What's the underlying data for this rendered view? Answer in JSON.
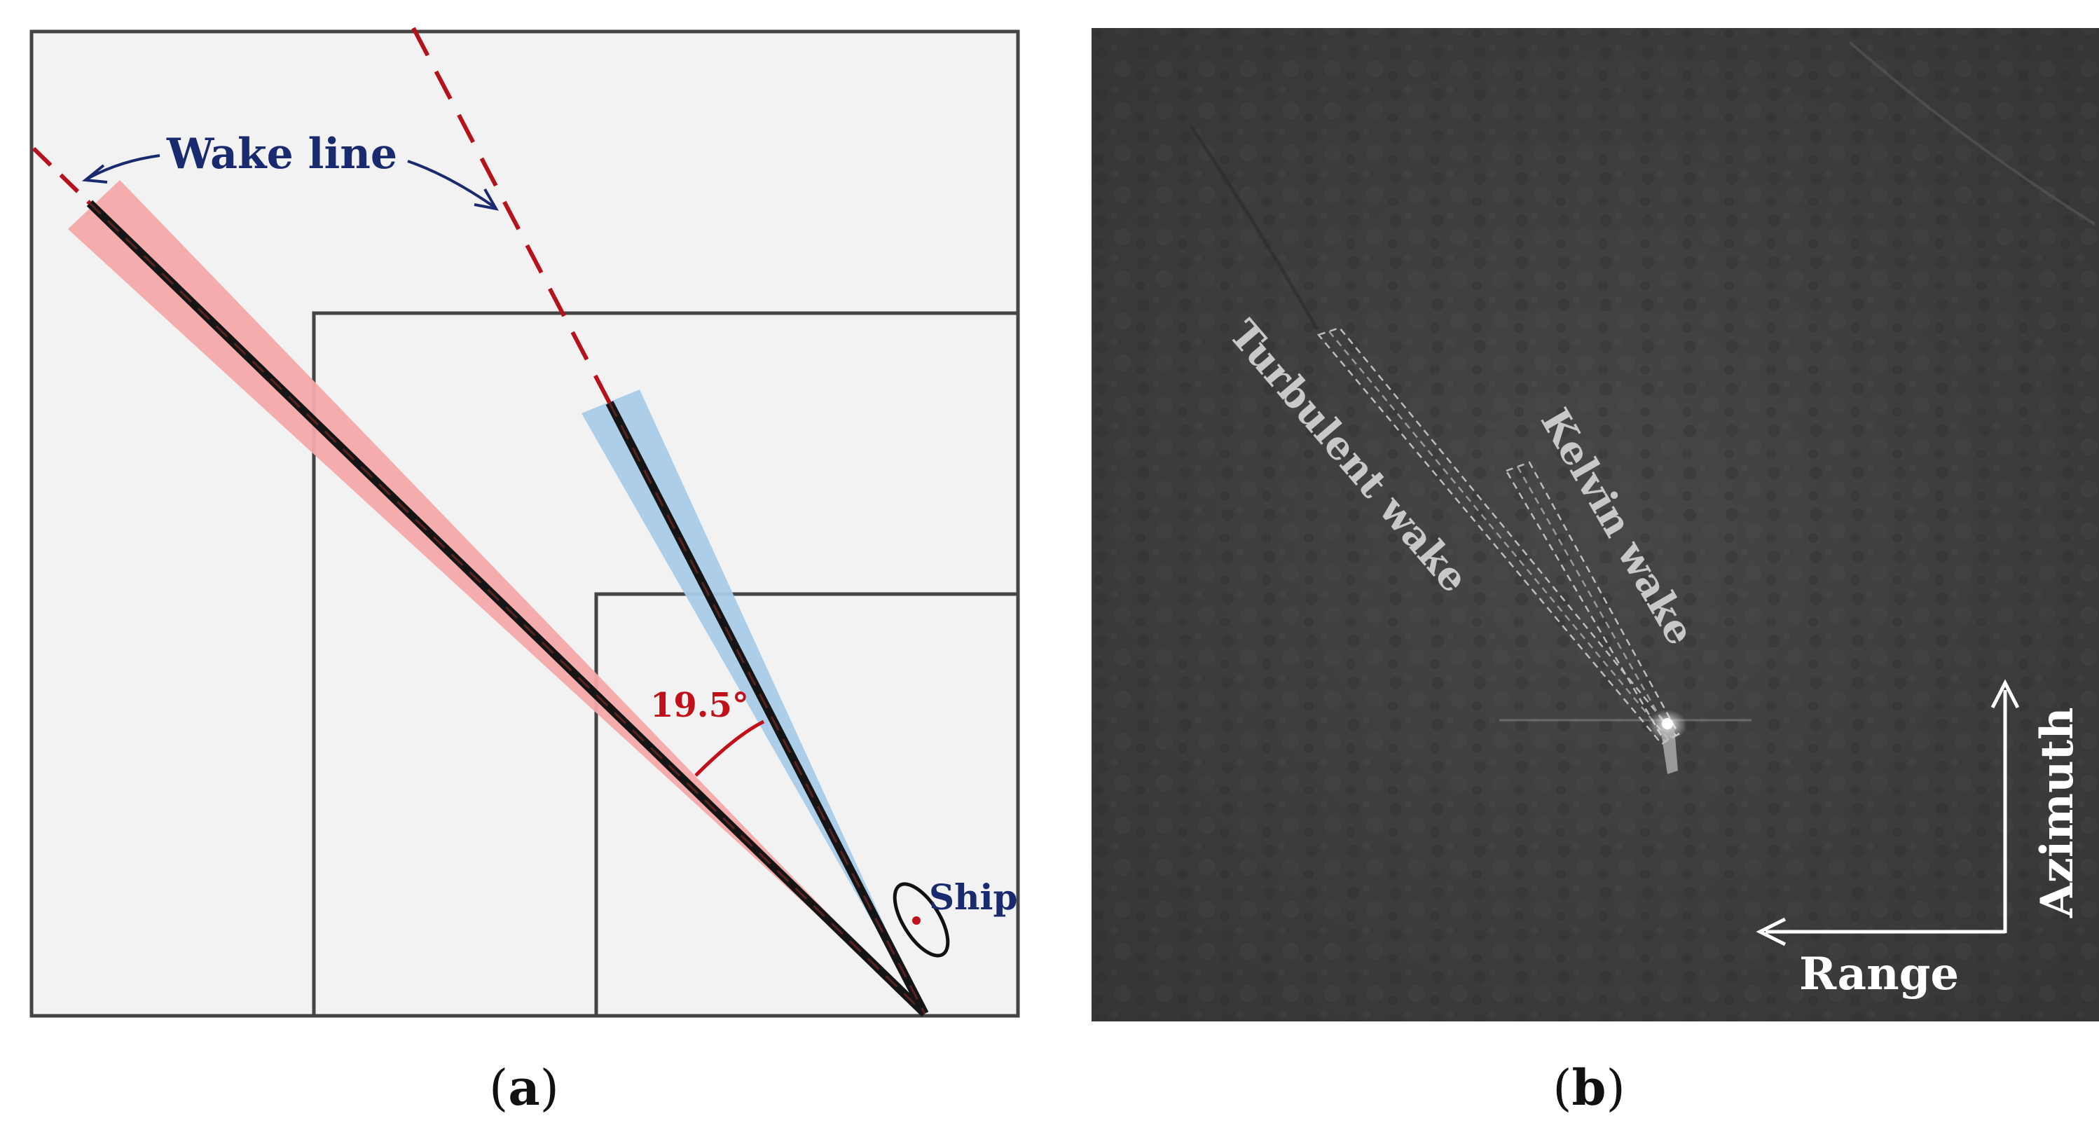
{
  "panel_a": {
    "label_open": "(",
    "label_letter": "a",
    "label_close": ")",
    "wake_line_label": "Wake line",
    "angle_label": "19.5°",
    "ship_label": "Ship",
    "colors": {
      "dashed_line": "#b5121b",
      "red_band": "#f4a8a8",
      "blue_band": "#a8cbe8",
      "label_blue": "#1a2a6e",
      "angle_red": "#c0101a",
      "frame": "#444444",
      "panel_bg": "#f2f2f2"
    }
  },
  "panel_b": {
    "label_open": "(",
    "label_letter": "b",
    "label_close": ")",
    "turbulent_label": "Turbulent wake",
    "kelvin_label": "Kelvin wake",
    "azimuth_label": "Azimuth",
    "range_label": "Range",
    "colors": {
      "sea_bg": "#3e3e3e",
      "wake_text": "#c8c8c8",
      "axis_text": "#ffffff"
    }
  }
}
